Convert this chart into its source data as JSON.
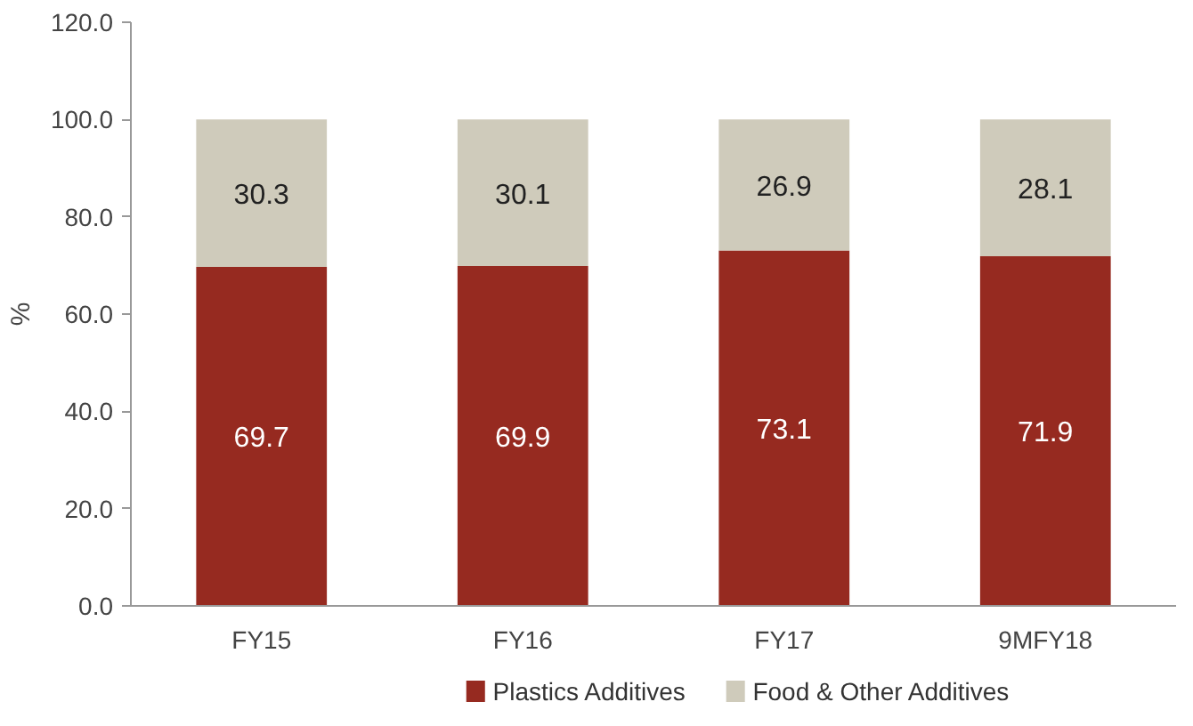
{
  "chart_data": {
    "type": "bar",
    "stacked": true,
    "ylabel": "%",
    "categories": [
      "FY15",
      "FY16",
      "FY17",
      "9MFY18"
    ],
    "series": [
      {
        "name": "Plastics Additives",
        "color": "#962a20",
        "values": [
          69.7,
          69.9,
          73.1,
          71.9
        ]
      },
      {
        "name": "Food & Other Additives",
        "color": "#cfcbbb",
        "values": [
          30.3,
          30.1,
          26.9,
          28.1
        ]
      }
    ],
    "ylim": [
      0,
      120
    ],
    "yticks": [
      {
        "value": 0,
        "label": "0.0"
      },
      {
        "value": 20,
        "label": "20.0"
      },
      {
        "value": 40,
        "label": "40.0"
      },
      {
        "value": 60,
        "label": "60.0"
      },
      {
        "value": 80,
        "label": "80.0"
      },
      {
        "value": 100,
        "label": "100.0"
      },
      {
        "value": 120,
        "label": "120.0"
      }
    ],
    "data_labels": true,
    "grid": false,
    "legend": "bottom"
  }
}
